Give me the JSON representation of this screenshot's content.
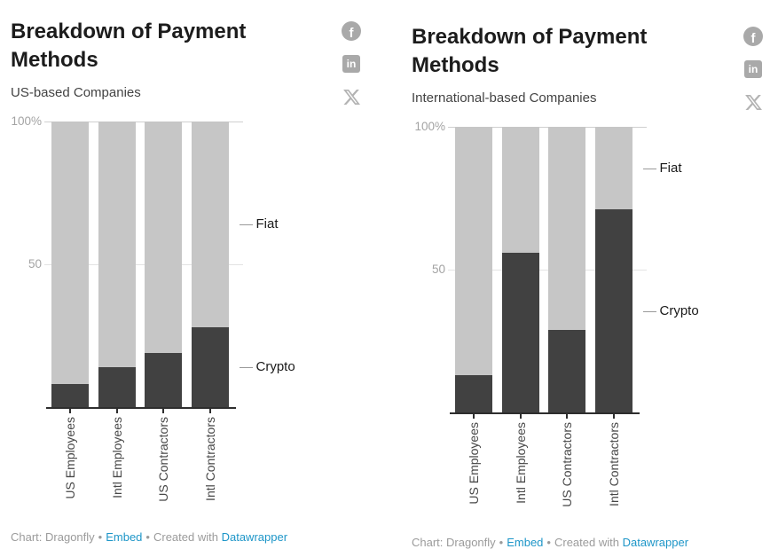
{
  "page": {
    "background": "#ffffff"
  },
  "social": {
    "facebook_label": "f",
    "linkedin_label": "in"
  },
  "footer": {
    "credit": "Chart: Dragonfly",
    "separator": "•",
    "embed_label": "Embed",
    "created_with": "Created with",
    "tool_label": "Datawrapper",
    "link_color": "#1e96c8"
  },
  "chart_data": [
    {
      "type": "bar",
      "stacked": true,
      "orientation": "vertical-columns",
      "title": "Breakdown of Payment Methods",
      "subtitle": "US-based Companies",
      "categories": [
        "US Employees",
        "Intl Employees",
        "US Contractors",
        "Intl Contractors"
      ],
      "series": [
        {
          "name": "Crypto",
          "color": "#414141",
          "values": [
            8,
            14,
            19,
            28
          ]
        },
        {
          "name": "Fiat",
          "color": "#c6c6c6",
          "values": [
            92,
            86,
            81,
            72
          ]
        }
      ],
      "ylim": [
        0,
        100
      ],
      "yticks": [
        {
          "value": 100,
          "label": "100%"
        },
        {
          "value": 50,
          "label": "50"
        }
      ],
      "grid": "horizontal",
      "legend": {
        "position": "right-callout",
        "entries": [
          "Fiat",
          "Crypto"
        ]
      },
      "xlabel_rotation": -90
    },
    {
      "type": "bar",
      "stacked": true,
      "orientation": "vertical-columns",
      "title": "Breakdown of Payment Methods",
      "subtitle": "International-based Companies",
      "categories": [
        "US Employees",
        "Intl Employees",
        "US Contractors",
        "Intl Contractors"
      ],
      "series": [
        {
          "name": "Crypto",
          "color": "#414141",
          "values": [
            13,
            56,
            29,
            71
          ]
        },
        {
          "name": "Fiat",
          "color": "#c6c6c6",
          "values": [
            87,
            44,
            71,
            29
          ]
        }
      ],
      "ylim": [
        0,
        100
      ],
      "yticks": [
        {
          "value": 100,
          "label": "100%"
        },
        {
          "value": 50,
          "label": "50"
        }
      ],
      "grid": "horizontal",
      "legend": {
        "position": "right-callout",
        "entries": [
          "Fiat",
          "Crypto"
        ]
      },
      "xlabel_rotation": -90
    }
  ]
}
